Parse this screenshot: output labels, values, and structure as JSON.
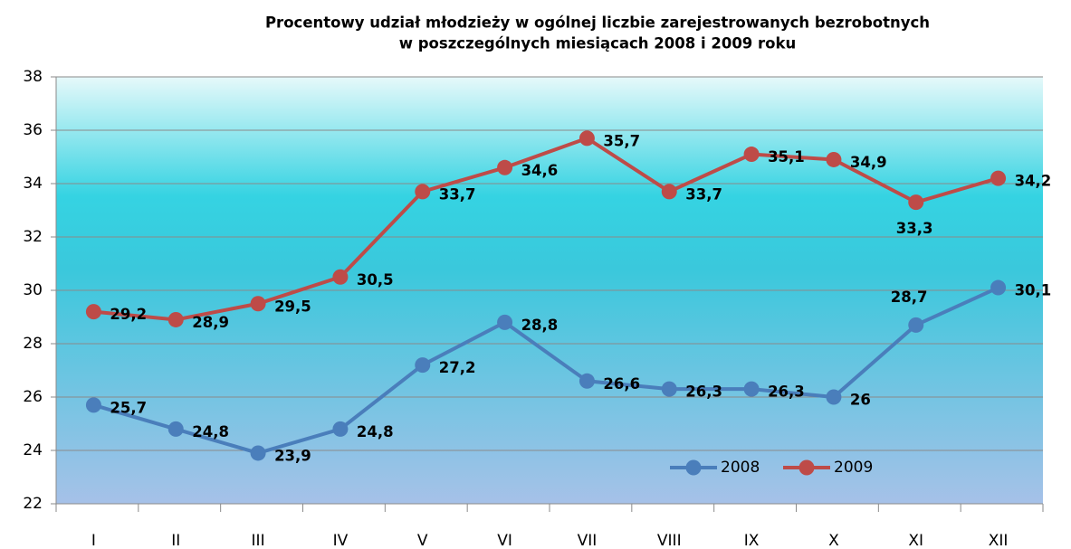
{
  "chart_data": {
    "type": "line",
    "title": [
      "Procentowy udział młodzieży w ogólnej liczbie zarejestrowanych bezrobotnych",
      "w poszczególnych miesiącach 2008 i 2009 roku"
    ],
    "categories": [
      "I",
      "II",
      "III",
      "IV",
      "V",
      "VI",
      "VII",
      "VIII",
      "IX",
      "X",
      "XI",
      "XII"
    ],
    "series": [
      {
        "name": "2008",
        "color": "#4a7ebb",
        "values": [
          25.7,
          24.8,
          23.9,
          24.8,
          27.2,
          28.8,
          26.6,
          26.3,
          26.3,
          26,
          28.7,
          30.1
        ],
        "value_labels": [
          "25,7",
          "24,8",
          "23,9",
          "24,8",
          "27,2",
          "28,8",
          "26,6",
          "26,3",
          "26,3",
          "26",
          "28,7",
          "30,1"
        ]
      },
      {
        "name": "2009",
        "color": "#be4b48",
        "values": [
          29.2,
          28.9,
          29.5,
          30.5,
          33.7,
          34.6,
          35.7,
          33.7,
          35.1,
          34.9,
          33.3,
          34.2
        ],
        "value_labels": [
          "29,2",
          "28,9",
          "29,5",
          "30,5",
          "33,7",
          "34,6",
          "35,7",
          "33,7",
          "35,1",
          "34,9",
          "33,3",
          "34,2"
        ]
      }
    ],
    "ylim": [
      22,
      38
    ],
    "yticks": [
      22,
      24,
      26,
      28,
      30,
      32,
      34,
      36,
      38
    ],
    "grid": true,
    "legend": "bottom-right"
  }
}
